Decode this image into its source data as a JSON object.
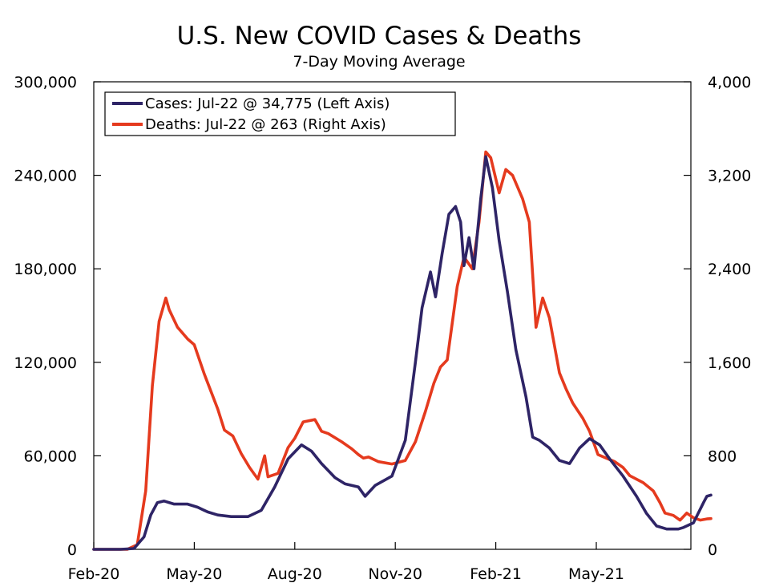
{
  "chart_data": {
    "type": "line",
    "title": "U.S. New COVID Cases & Deaths",
    "subtitle": "7-Day Moving Average",
    "xlabel": "",
    "ylabel_left": "",
    "ylabel_right": "",
    "x_tick_labels": [
      "Feb-20",
      "May-20",
      "Aug-20",
      "Nov-20",
      "Feb-21",
      "May-21"
    ],
    "x_tick_months": [
      0,
      3,
      6,
      9,
      12,
      15
    ],
    "y_left_ticks": [
      "300,000",
      "240,000",
      "180,000",
      "120,000",
      "60,000",
      "0"
    ],
    "y_left_tick_values": [
      300000,
      240000,
      180000,
      120000,
      60000,
      0
    ],
    "y_right_ticks": [
      "4,000",
      "3,200",
      "2,400",
      "1,600",
      "800",
      "0"
    ],
    "y_right_tick_values": [
      4000,
      3200,
      2400,
      1600,
      800,
      0
    ],
    "y_left_range": [
      0,
      300000
    ],
    "y_right_range": [
      0,
      4000
    ],
    "x_range_months": [
      0,
      17.7
    ],
    "x_unit": "months since Feb-20",
    "legend_position": "top-left",
    "series": [
      {
        "name": "Cases: Jul-22 @ 34,775 (Left Axis)",
        "axis": "left",
        "color": "#2e2466",
        "points": [
          [
            0,
            0
          ],
          [
            0.8,
            0
          ],
          [
            1.2,
            500
          ],
          [
            1.5,
            8000
          ],
          [
            1.7,
            22000
          ],
          [
            1.9,
            30000
          ],
          [
            2.1,
            31000
          ],
          [
            2.4,
            29000
          ],
          [
            2.8,
            29000
          ],
          [
            3.1,
            27000
          ],
          [
            3.4,
            24000
          ],
          [
            3.7,
            22000
          ],
          [
            4.1,
            21000
          ],
          [
            4.6,
            21000
          ],
          [
            5.0,
            25000
          ],
          [
            5.4,
            40000
          ],
          [
            5.8,
            58000
          ],
          [
            6.2,
            67000
          ],
          [
            6.5,
            63000
          ],
          [
            6.8,
            55000
          ],
          [
            7.2,
            46000
          ],
          [
            7.5,
            42000
          ],
          [
            7.9,
            40000
          ],
          [
            8.1,
            34000
          ],
          [
            8.4,
            41000
          ],
          [
            8.9,
            47000
          ],
          [
            9.3,
            70000
          ],
          [
            9.6,
            120000
          ],
          [
            9.8,
            155000
          ],
          [
            10.05,
            178000
          ],
          [
            10.2,
            162000
          ],
          [
            10.4,
            190000
          ],
          [
            10.6,
            215000
          ],
          [
            10.8,
            220000
          ],
          [
            10.95,
            210000
          ],
          [
            11.05,
            182000
          ],
          [
            11.2,
            200000
          ],
          [
            11.35,
            180000
          ],
          [
            11.55,
            225000
          ],
          [
            11.7,
            252000
          ],
          [
            11.9,
            232000
          ],
          [
            12.1,
            198000
          ],
          [
            12.35,
            165000
          ],
          [
            12.6,
            128000
          ],
          [
            12.9,
            98000
          ],
          [
            13.1,
            72000
          ],
          [
            13.3,
            70000
          ],
          [
            13.6,
            65000
          ],
          [
            13.9,
            57000
          ],
          [
            14.2,
            55000
          ],
          [
            14.5,
            65000
          ],
          [
            14.8,
            71000
          ],
          [
            15.1,
            67000
          ],
          [
            15.4,
            58000
          ],
          [
            15.8,
            47000
          ],
          [
            16.2,
            34000
          ],
          [
            16.5,
            23000
          ],
          [
            16.8,
            15000
          ],
          [
            17.1,
            13000
          ],
          [
            17.45,
            13000
          ],
          [
            17.6,
            14000
          ],
          [
            17.9,
            17000
          ],
          [
            18.2,
            30000
          ],
          [
            18.3,
            34000
          ],
          [
            18.42,
            34775
          ]
        ]
      },
      {
        "name": "Deaths: Jul-22 @ 263 (Right Axis)",
        "axis": "right",
        "color": "#e53a1e",
        "points": [
          [
            0,
            0
          ],
          [
            1.0,
            0
          ],
          [
            1.3,
            40
          ],
          [
            1.55,
            500
          ],
          [
            1.75,
            1400
          ],
          [
            1.95,
            1950
          ],
          [
            2.15,
            2150
          ],
          [
            2.25,
            2050
          ],
          [
            2.5,
            1900
          ],
          [
            2.8,
            1800
          ],
          [
            3.0,
            1750
          ],
          [
            3.3,
            1500
          ],
          [
            3.7,
            1200
          ],
          [
            3.9,
            1020
          ],
          [
            4.15,
            970
          ],
          [
            4.4,
            820
          ],
          [
            4.65,
            700
          ],
          [
            4.9,
            600
          ],
          [
            5.1,
            800
          ],
          [
            5.2,
            620
          ],
          [
            5.5,
            650
          ],
          [
            5.8,
            870
          ],
          [
            6.0,
            950
          ],
          [
            6.25,
            1090
          ],
          [
            6.6,
            1110
          ],
          [
            6.8,
            1010
          ],
          [
            7.0,
            990
          ],
          [
            7.4,
            920
          ],
          [
            7.7,
            860
          ],
          [
            7.9,
            810
          ],
          [
            8.05,
            780
          ],
          [
            8.2,
            790
          ],
          [
            8.5,
            750
          ],
          [
            8.9,
            730
          ],
          [
            9.3,
            760
          ],
          [
            9.6,
            920
          ],
          [
            9.9,
            1180
          ],
          [
            10.15,
            1420
          ],
          [
            10.35,
            1560
          ],
          [
            10.55,
            1620
          ],
          [
            10.85,
            2250
          ],
          [
            11.05,
            2500
          ],
          [
            11.3,
            2400
          ],
          [
            11.5,
            2800
          ],
          [
            11.7,
            3400
          ],
          [
            11.85,
            3350
          ],
          [
            12.1,
            3050
          ],
          [
            12.3,
            3250
          ],
          [
            12.5,
            3200
          ],
          [
            12.8,
            3000
          ],
          [
            13.0,
            2800
          ],
          [
            13.2,
            1900
          ],
          [
            13.4,
            2150
          ],
          [
            13.6,
            1980
          ],
          [
            13.9,
            1510
          ],
          [
            14.1,
            1370
          ],
          [
            14.3,
            1250
          ],
          [
            14.6,
            1120
          ],
          [
            14.8,
            1010
          ],
          [
            15.05,
            810
          ],
          [
            15.3,
            780
          ],
          [
            15.55,
            750
          ],
          [
            15.8,
            700
          ],
          [
            16.0,
            630
          ],
          [
            16.4,
            570
          ],
          [
            16.7,
            500
          ],
          [
            16.9,
            400
          ],
          [
            17.05,
            310
          ],
          [
            17.3,
            290
          ],
          [
            17.5,
            250
          ],
          [
            17.7,
            310
          ],
          [
            17.9,
            270
          ],
          [
            18.1,
            250
          ],
          [
            18.3,
            260
          ],
          [
            18.42,
            263
          ]
        ]
      }
    ]
  }
}
